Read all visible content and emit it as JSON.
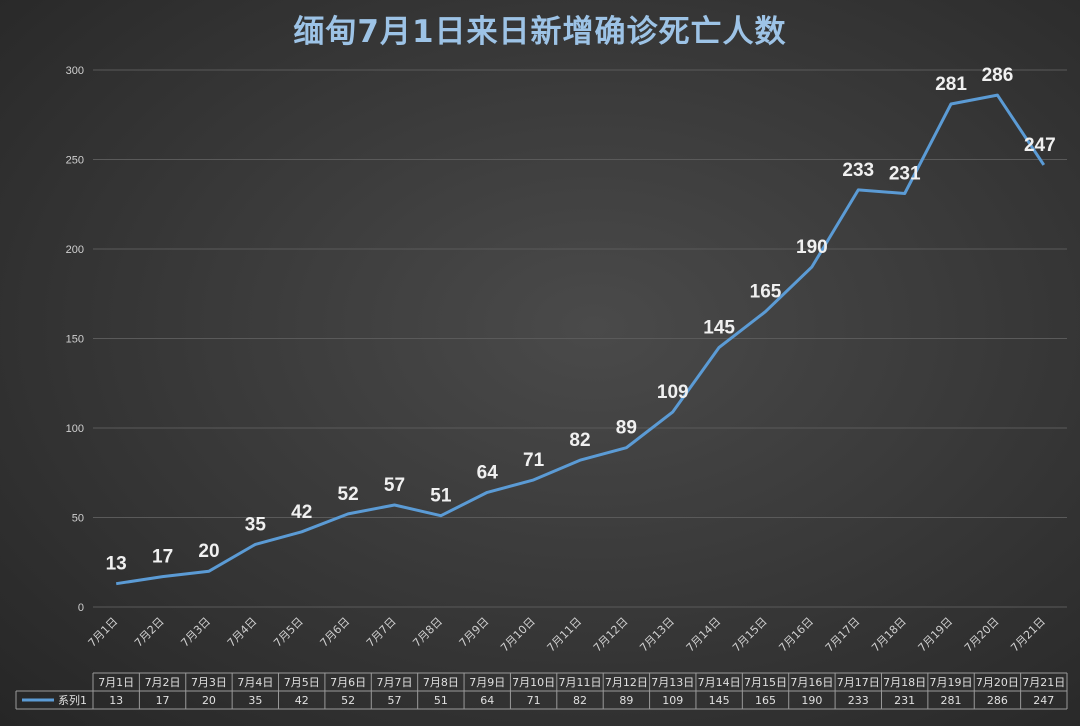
{
  "chart_data": {
    "type": "line",
    "title": "缅甸7月1日来日新增确诊死亡人数",
    "categories": [
      "7月1日",
      "7月2日",
      "7月3日",
      "7月4日",
      "7月5日",
      "7月6日",
      "7月7日",
      "7月8日",
      "7月9日",
      "7月10日",
      "7月11日",
      "7月12日",
      "7月13日",
      "7月14日",
      "7月15日",
      "7月16日",
      "7月17日",
      "7月18日",
      "7月19日",
      "7月20日",
      "7月21日"
    ],
    "series": [
      {
        "name": "系列1",
        "values": [
          13,
          17,
          20,
          35,
          42,
          52,
          57,
          51,
          64,
          71,
          82,
          89,
          109,
          145,
          165,
          190,
          233,
          231,
          281,
          286,
          247
        ]
      }
    ],
    "ylim": [
      0,
      300
    ],
    "yticks": [
      0,
      50,
      100,
      150,
      200,
      250,
      300
    ],
    "grid": true,
    "data_table": true,
    "colors": {
      "line": "#5b9bd5",
      "title": "#9dc3e6"
    }
  }
}
